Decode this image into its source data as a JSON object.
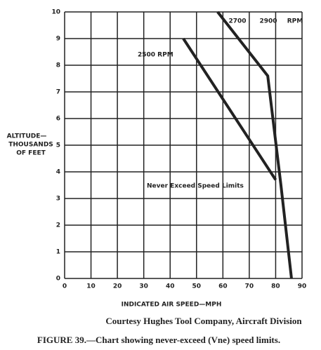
{
  "chart_data": {
    "type": "line",
    "ylabel": [
      "ALTITUDE—",
      "THOUSANDS",
      "OF FEET"
    ],
    "xlabel": "INDICATED AIR SPEED—MPH",
    "xlim": [
      0,
      90
    ],
    "xticks": [
      0,
      10,
      20,
      30,
      40,
      50,
      60,
      70,
      80,
      90
    ],
    "ylim": [
      0,
      10
    ],
    "yticks": [
      0,
      1,
      2,
      3,
      4,
      5,
      6,
      7,
      8,
      9,
      10
    ],
    "grid": true,
    "series": [
      {
        "name": "2500 RPM",
        "color": "#222222",
        "x": [
          45,
          80
        ],
        "values": [
          9,
          3.7
        ]
      },
      {
        "color": "#222222",
        "x": [
          58,
          77,
          82,
          86
        ],
        "values": [
          10,
          7.6,
          3.5,
          0
        ]
      }
    ],
    "annotations": [
      "2700",
      "2900",
      "RPM",
      "Never Exceed Speed Limits"
    ],
    "credit": "Courtesy Hughes Tool Company, Aircraft Division",
    "caption": "FIGURE 39.—Chart showing never-exceed (Vne) speed limits."
  }
}
